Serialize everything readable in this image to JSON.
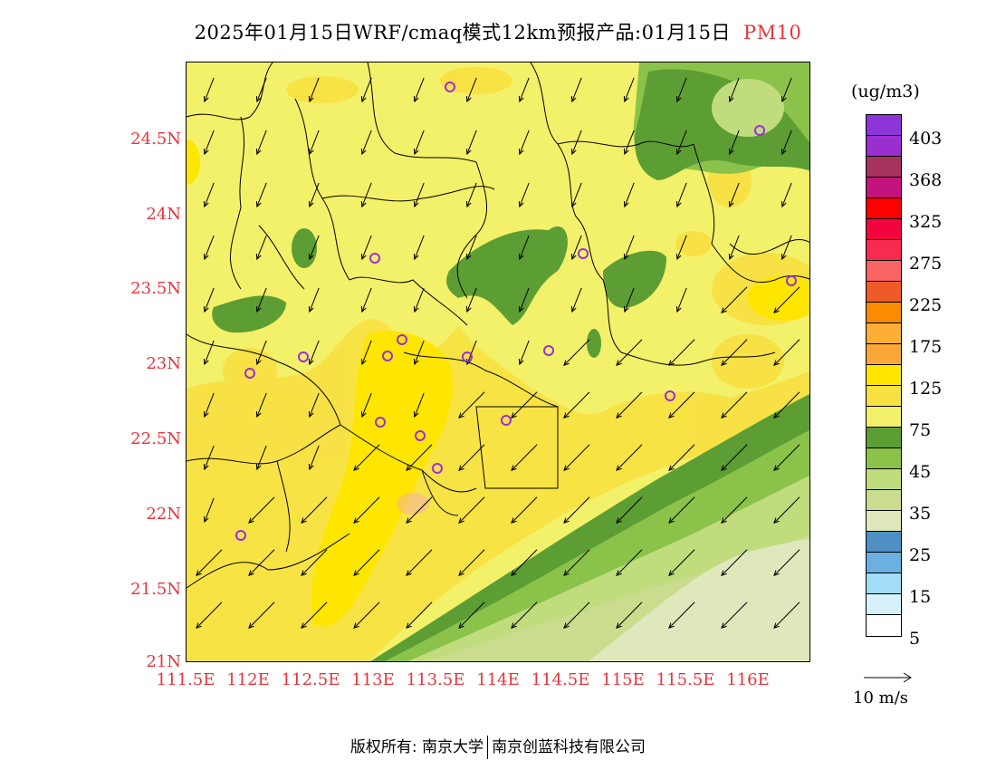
{
  "title": {
    "main": "2025年01月15日WRF/cmaq模式12km预报产品:01月15日",
    "pollutant": "PM10"
  },
  "axes": {
    "y_labels": [
      "24.5N",
      "24N",
      "23.5N",
      "23N",
      "22.5N",
      "22N",
      "21.5N",
      "21N"
    ],
    "x_labels": [
      "111.5E",
      "112E",
      "112.5E",
      "113E",
      "113.5E",
      "114E",
      "114.5E",
      "115E",
      "115.5E",
      "116E"
    ]
  },
  "colorbar": {
    "unit": "(ug/m3)",
    "colors": [
      "#8d35d9",
      "#9a2ecf",
      "#a8325e",
      "#c3137f",
      "#ff0000",
      "#f2053d",
      "#f72a4f",
      "#fa6464",
      "#ef5a29",
      "#fb8c00",
      "#fdae35",
      "#f9a837",
      "#ffe600",
      "#f8e143",
      "#f3f06a",
      "#5d9e34",
      "#8bc34a",
      "#c0dc7d",
      "#cadc8e",
      "#dfe8bd",
      "#4f90c4",
      "#6bb0e0",
      "#a2dcf6",
      "#d6f1fb",
      "#ffffff"
    ],
    "labels": [
      "403",
      "368",
      "325",
      "275",
      "225",
      "175",
      "125",
      "75",
      "45",
      "35",
      "25",
      "15",
      "5"
    ]
  },
  "wind_legend": {
    "label": "10 m/s"
  },
  "stations_color": "#9b2fd8",
  "copyright": {
    "left": "版权所有: 南京大学",
    "right": "南京创蓝科技有限公司"
  }
}
